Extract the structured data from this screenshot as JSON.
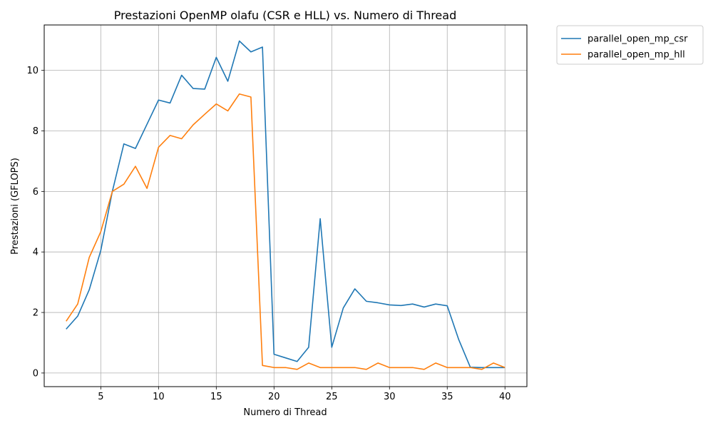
{
  "chart_data": {
    "type": "line",
    "title": "Prestazioni OpenMP olafu (CSR e HLL) vs. Numero di Thread",
    "xlabel": "Numero di Thread",
    "ylabel": "Prestazioni (GFLOPS)",
    "xlim": [
      0.1,
      41.9
    ],
    "ylim": [
      -0.45,
      11.5
    ],
    "xticks": [
      5,
      10,
      15,
      20,
      25,
      30,
      35,
      40
    ],
    "yticks": [
      0,
      2,
      4,
      6,
      8,
      10
    ],
    "grid": true,
    "legend_position": "outside-top-right",
    "x": [
      2,
      3,
      4,
      5,
      6,
      7,
      8,
      9,
      10,
      11,
      12,
      13,
      14,
      15,
      16,
      17,
      18,
      19,
      20,
      21,
      22,
      23,
      24,
      25,
      26,
      27,
      28,
      29,
      30,
      31,
      32,
      33,
      34,
      35,
      36,
      37,
      38,
      39,
      40
    ],
    "series": [
      {
        "name": "parallel_open_mp_csr",
        "color": "#1f77b4",
        "values": [
          1.45,
          1.88,
          2.75,
          4.05,
          6.0,
          7.57,
          7.42,
          8.22,
          9.02,
          8.92,
          9.84,
          9.4,
          9.38,
          10.43,
          9.64,
          10.97,
          10.61,
          10.77,
          0.62,
          0.5,
          0.38,
          0.85,
          5.1,
          0.85,
          2.15,
          2.78,
          2.37,
          2.32,
          2.25,
          2.23,
          2.28,
          2.18,
          2.28,
          2.22,
          1.1,
          0.19,
          0.18,
          0.18,
          0.18
        ]
      },
      {
        "name": "parallel_open_mp_hll",
        "color": "#ff7f0e",
        "values": [
          1.71,
          2.28,
          3.82,
          4.67,
          6.0,
          6.24,
          6.83,
          6.1,
          7.46,
          7.85,
          7.74,
          8.2,
          8.55,
          8.89,
          8.66,
          9.22,
          9.12,
          0.25,
          0.18,
          0.18,
          0.12,
          0.33,
          0.18,
          0.18,
          0.18,
          0.18,
          0.12,
          0.33,
          0.18,
          0.18,
          0.18,
          0.12,
          0.33,
          0.18,
          0.18,
          0.18,
          0.12,
          0.33,
          0.18
        ]
      }
    ]
  }
}
